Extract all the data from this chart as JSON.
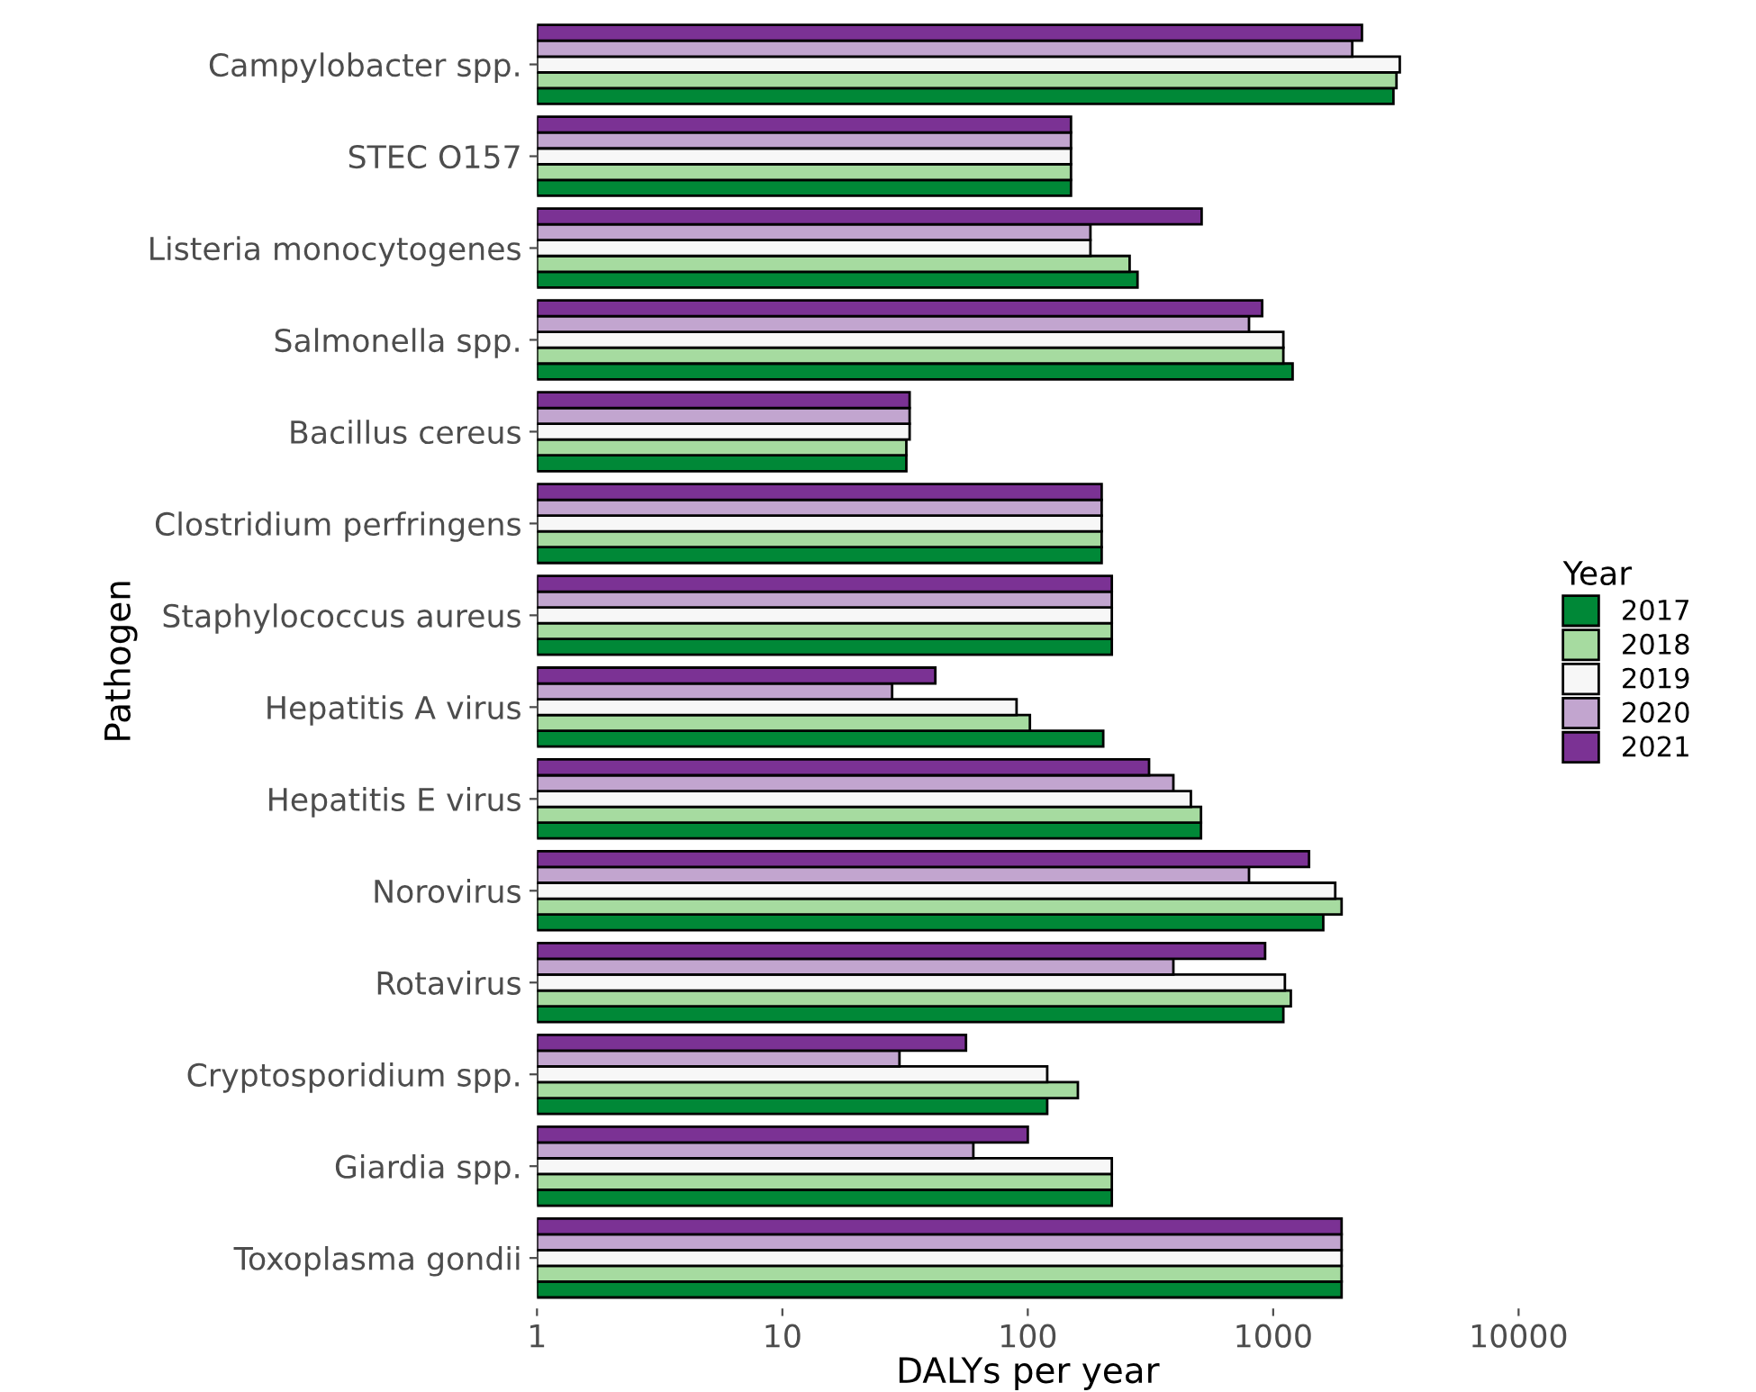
{
  "chart_data": {
    "type": "bar",
    "orientation": "horizontal",
    "log": "x",
    "xlabel": "DALYs per year",
    "ylabel": "Pathogen",
    "legend_title": "Year",
    "legend": "right",
    "grid": false,
    "categories": [
      "Campylobacter spp.",
      "STEC O157",
      "Listeria monocytogenes",
      "Salmonella spp.",
      "Bacillus cereus",
      "Clostridium perfringens",
      "Staphylococcus aureus",
      "Hepatitis A virus",
      "Hepatitis E virus",
      "Norovirus",
      "Rotavirus",
      "Cryptosporidium spp.",
      "Giardia spp.",
      "Toxoplasma gondii"
    ],
    "xlim": [
      1,
      10000
    ],
    "xticks": [
      1,
      10,
      100,
      1000,
      10000
    ],
    "series": [
      {
        "name": "2017",
        "color": "#008837",
        "values": [
          3090,
          150,
          280,
          1200,
          32,
          200,
          220,
          203,
          508,
          1600,
          1100,
          120,
          220,
          1900
        ]
      },
      {
        "name": "2018",
        "color": "#a6dba0",
        "values": [
          3180,
          150,
          260,
          1100,
          32,
          200,
          220,
          102,
          508,
          1900,
          1180,
          160,
          220,
          1900
        ]
      },
      {
        "name": "2019",
        "color": "#f7f7f7",
        "values": [
          3280,
          150,
          180,
          1100,
          33,
          200,
          220,
          90,
          462,
          1790,
          1116,
          120,
          220,
          1900
        ]
      },
      {
        "name": "2020",
        "color": "#c2a5cf",
        "values": [
          2100,
          150,
          180,
          797,
          33,
          200,
          220,
          28,
          392,
          797,
          392,
          30,
          60,
          1900
        ]
      },
      {
        "name": "2021",
        "color": "#7b3294",
        "values": [
          2300,
          150,
          511,
          902,
          33,
          200,
          220,
          42,
          312,
          1400,
          927,
          56,
          100,
          1900
        ]
      }
    ]
  }
}
